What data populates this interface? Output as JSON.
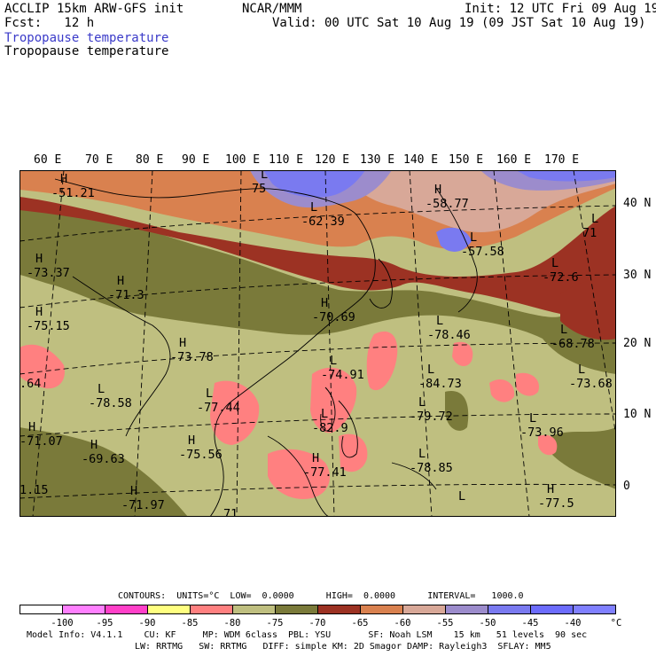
{
  "header": {
    "model": "ACCLIP 15km ARW-GFS init",
    "org": "NCAR/MMM",
    "init": "Init: 12 UTC Fri 09 Aug 19",
    "fcst": "Fcst:   12 h",
    "valid": "Valid: 00 UTC Sat 10 Aug 19 (09 JST Sat 10 Aug 19)",
    "field_blue": "Tropopause temperature",
    "field_black": "Tropopause temperature"
  },
  "map": {
    "lon_labels": [
      "60 E",
      "70 E",
      "80 E",
      "90 E",
      "100 E",
      "110 E",
      "120 E",
      "130 E",
      "140 E",
      "150 E",
      "160 E",
      "170 E"
    ],
    "lat_labels": [
      "40 N",
      "30 N",
      "20 N",
      "10 N",
      "0"
    ],
    "markers": [
      {
        "letter": "H",
        "value": "-51.21"
      },
      {
        "letter": "L",
        "value": "75"
      },
      {
        "letter": "H",
        "value": "-58.77"
      },
      {
        "letter": "L",
        "value": "-62.39"
      },
      {
        "letter": "L",
        "value": "-57.58"
      },
      {
        "letter": "L",
        "value": "71"
      },
      {
        "letter": "H",
        "value": "-73.37"
      },
      {
        "letter": "H",
        "value": "-71.3"
      },
      {
        "letter": "L",
        "value": "-72.6"
      },
      {
        "letter": "H",
        "value": "-70.69"
      },
      {
        "letter": "H",
        "value": "-75.15"
      },
      {
        "letter": "H",
        "value": "-73.78"
      },
      {
        "letter": "L",
        "value": "-78.46"
      },
      {
        "letter": "L",
        "value": "-68.78"
      },
      {
        "letter": "",
        "value": ".64"
      },
      {
        "letter": "L",
        "value": "-74.91"
      },
      {
        "letter": "L",
        "value": "-84.73"
      },
      {
        "letter": "L",
        "value": "-73.68"
      },
      {
        "letter": "L",
        "value": "-78.58"
      },
      {
        "letter": "L",
        "value": "-77.44"
      },
      {
        "letter": "L",
        "value": "-79.72"
      },
      {
        "letter": "H",
        "value": "-71.07"
      },
      {
        "letter": "L",
        "value": "-82.9"
      },
      {
        "letter": "L",
        "value": "-73.96"
      },
      {
        "letter": "H",
        "value": "-69.63"
      },
      {
        "letter": "H",
        "value": "-75.56"
      },
      {
        "letter": "H",
        "value": "-77.41"
      },
      {
        "letter": "L",
        "value": "-78.85"
      },
      {
        "letter": "",
        "value": "1.15"
      },
      {
        "letter": "H",
        "value": "-71.97"
      },
      {
        "letter": "",
        "value": "71"
      },
      {
        "letter": "L",
        "value": ""
      },
      {
        "letter": "H",
        "value": "-77.5"
      }
    ]
  },
  "contours": {
    "line": "CONTOURS:  UNITS=°C  LOW=  0.0000      HIGH=  0.0000      INTERVAL=   1000.0"
  },
  "colorbar": {
    "colors": [
      "#ffffff",
      "#ff80ff",
      "#ff40c8",
      "#ffff80",
      "#ff8080",
      "#bfbf80",
      "#7a7a3a",
      "#9c3223",
      "#d9814f",
      "#d8a898",
      "#9c8ccc",
      "#7a7af0",
      "#6c6cfc",
      "#8080ff"
    ],
    "labels": [
      "-100",
      "-95",
      "-90",
      "-85",
      "-80",
      "-75",
      "-70",
      "-65",
      "-60",
      "-55",
      "-50",
      "-45",
      "-40"
    ],
    "unit": "°C"
  },
  "footer": {
    "line1": "Model Info: V4.1.1    CU: KF     MP: WDM 6class  PBL: YSU       SF: Noah LSM    15 km   51 levels  90 sec",
    "line2": "LW: RRTMG   SW: RRTMG   DIFF: simple KM: 2D Smagor DAMP: Rayleigh3  SFLAY: MM5"
  }
}
